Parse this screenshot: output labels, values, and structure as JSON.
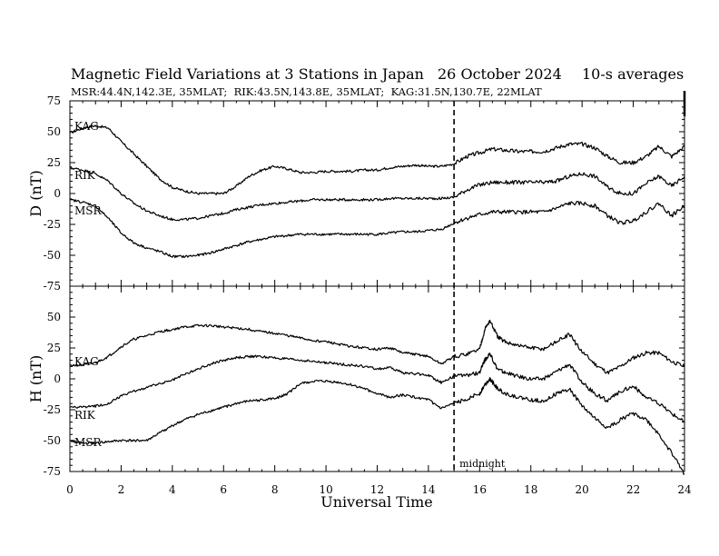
{
  "header": {
    "title": "Magnetic Field Variations at 3 Stations in Japan",
    "date": "26 October 2024",
    "averaging": "10-s averages",
    "stations": "MSR:44.4N,142.3E, 35MLAT;  RIK:43.5N,143.8E, 35MLAT;  KAG:31.5N,130.7E, 22MLAT"
  },
  "annotations": {
    "midnight": "midnight"
  },
  "chart_data": [
    {
      "type": "line",
      "panel": "D",
      "ylabel": "D (nT)",
      "xlabel": "",
      "xlim": [
        0,
        24
      ],
      "ylim": [
        -75,
        75
      ],
      "yticks": [
        75,
        50,
        25,
        0,
        -25,
        -50,
        -75
      ],
      "ytick_labels": [
        "75",
        "50",
        "25",
        "0",
        "-25",
        "-50",
        "-75"
      ],
      "midnight_ut": 15,
      "series": [
        {
          "name": "KAG",
          "x": [
            0,
            0.5,
            1,
            1.5,
            2,
            2.5,
            3,
            3.5,
            4,
            4.5,
            5,
            5.5,
            6,
            6.5,
            7,
            7.5,
            8,
            8.5,
            9,
            9.5,
            10,
            10.5,
            11,
            11.5,
            12,
            12.5,
            13,
            13.5,
            14,
            14.5,
            15,
            15.5,
            16,
            16.5,
            17,
            17.5,
            18,
            18.5,
            19,
            19.5,
            20,
            20.5,
            21,
            21.5,
            22,
            22.5,
            23,
            23.5,
            24
          ],
          "values": [
            49,
            53,
            55,
            53,
            42,
            32,
            22,
            12,
            5,
            2,
            0,
            0,
            0,
            6,
            14,
            19,
            22,
            20,
            17,
            17,
            18,
            18,
            18,
            19,
            19,
            21,
            22,
            23,
            22,
            22,
            24,
            30,
            33,
            36,
            35,
            34,
            34,
            34,
            37,
            40,
            40,
            37,
            30,
            25,
            25,
            30,
            38,
            30,
            38
          ]
        },
        {
          "name": "RIK",
          "x": [
            0,
            0.5,
            1,
            1.5,
            2,
            2.5,
            3,
            3.5,
            4,
            4.5,
            5,
            5.5,
            6,
            6.5,
            7,
            7.5,
            8,
            8.5,
            9,
            9.5,
            10,
            10.5,
            11,
            11.5,
            12,
            12.5,
            13,
            13.5,
            14,
            14.5,
            15,
            15.5,
            16,
            16.5,
            17,
            17.5,
            18,
            18.5,
            19,
            19.5,
            20,
            20.5,
            21,
            21.5,
            22,
            22.5,
            23,
            23.5,
            24
          ],
          "values": [
            21,
            19,
            16,
            10,
            0,
            -8,
            -14,
            -18,
            -21,
            -21,
            -20,
            -18,
            -16,
            -13,
            -11,
            -9,
            -8,
            -7,
            -6,
            -5,
            -5,
            -5,
            -5,
            -5,
            -5,
            -4,
            -4,
            -4,
            -4,
            -4,
            -3,
            3,
            7,
            9,
            9,
            9,
            9,
            9,
            10,
            14,
            16,
            14,
            5,
            0,
            0,
            8,
            14,
            6,
            14
          ]
        },
        {
          "name": "MSR",
          "x": [
            0,
            0.5,
            1,
            1.5,
            2,
            2.5,
            3,
            3.5,
            4,
            4.5,
            5,
            5.5,
            6,
            6.5,
            7,
            7.5,
            8,
            8.5,
            9,
            9.5,
            10,
            10.5,
            11,
            11.5,
            12,
            12.5,
            13,
            13.5,
            14,
            14.5,
            15,
            15.5,
            16,
            16.5,
            17,
            17.5,
            18,
            18.5,
            19,
            19.5,
            20,
            20.5,
            21,
            21.5,
            22,
            22.5,
            23,
            23.5,
            24
          ],
          "values": [
            -5,
            -7,
            -10,
            -20,
            -32,
            -40,
            -44,
            -47,
            -51,
            -51,
            -50,
            -48,
            -45,
            -42,
            -39,
            -37,
            -35,
            -34,
            -33,
            -33,
            -33,
            -33,
            -33,
            -33,
            -33,
            -32,
            -31,
            -31,
            -30,
            -29,
            -24,
            -20,
            -17,
            -15,
            -15,
            -15,
            -15,
            -15,
            -12,
            -8,
            -8,
            -10,
            -18,
            -24,
            -22,
            -15,
            -8,
            -18,
            -10
          ]
        }
      ]
    },
    {
      "type": "line",
      "panel": "H",
      "ylabel": "H (nT)",
      "xlabel": "Universal Time",
      "xlim": [
        0,
        24
      ],
      "ylim": [
        -75,
        75
      ],
      "xticks": [
        0,
        2,
        4,
        6,
        8,
        10,
        12,
        14,
        16,
        18,
        20,
        22,
        24
      ],
      "xtick_labels": [
        "0",
        "2",
        "4",
        "6",
        "8",
        "10",
        "12",
        "14",
        "16",
        "18",
        "20",
        "22",
        "24"
      ],
      "yticks": [
        50,
        25,
        0,
        -25,
        -50,
        -75
      ],
      "ytick_labels": [
        "50",
        "25",
        "0",
        "-25",
        "-50",
        "-75"
      ],
      "midnight_ut": 15,
      "series": [
        {
          "name": "KAG",
          "x": [
            0,
            0.5,
            1,
            1.5,
            2,
            2.5,
            3,
            3.5,
            4,
            4.5,
            5,
            5.5,
            6,
            6.5,
            7,
            7.5,
            8,
            8.5,
            9,
            9.5,
            10,
            10.5,
            11,
            11.5,
            12,
            12.5,
            13,
            13.5,
            14,
            14.5,
            15,
            15.5,
            16,
            16.2,
            16.4,
            16.7,
            17,
            17.5,
            18,
            18.5,
            19,
            19.5,
            20,
            20.5,
            21,
            21.5,
            22,
            22.5,
            23,
            23.5,
            24
          ],
          "values": [
            11,
            11,
            13,
            18,
            26,
            32,
            35,
            38,
            40,
            42,
            43,
            43,
            42,
            41,
            40,
            38,
            37,
            35,
            33,
            31,
            30,
            28,
            26,
            25,
            24,
            25,
            21,
            20,
            18,
            12,
            18,
            20,
            24,
            40,
            47,
            34,
            30,
            27,
            25,
            24,
            30,
            36,
            22,
            12,
            5,
            10,
            17,
            21,
            21,
            14,
            10
          ]
        },
        {
          "name": "RIK",
          "x": [
            0,
            0.5,
            1,
            1.5,
            2,
            2.5,
            3,
            3.5,
            4,
            4.5,
            5,
            5.5,
            6,
            6.5,
            7,
            7.5,
            8,
            8.5,
            9,
            9.5,
            10,
            10.5,
            11,
            11.5,
            12,
            12.5,
            13,
            13.5,
            14,
            14.5,
            15,
            15.5,
            16,
            16.2,
            16.4,
            16.7,
            17,
            17.5,
            18,
            18.5,
            19,
            19.5,
            20,
            20.5,
            21,
            21.5,
            22,
            22.5,
            23,
            23.5,
            24
          ],
          "values": [
            -23,
            -23,
            -22,
            -20,
            -14,
            -10,
            -7,
            -4,
            -1,
            4,
            8,
            12,
            15,
            17,
            18,
            18,
            17,
            16,
            15,
            14,
            13,
            12,
            11,
            10,
            8,
            9,
            5,
            4,
            3,
            -3,
            2,
            3,
            5,
            15,
            20,
            8,
            5,
            2,
            0,
            0,
            6,
            12,
            -3,
            -12,
            -18,
            -10,
            -6,
            -15,
            -20,
            -28,
            -35
          ]
        },
        {
          "name": "MSR",
          "x": [
            0,
            0.5,
            1,
            1.5,
            2,
            2.5,
            3,
            3.5,
            4,
            4.5,
            5,
            5.5,
            6,
            6.5,
            7,
            7.5,
            8,
            8.5,
            9,
            9.5,
            10,
            10.5,
            11,
            11.5,
            12,
            12.5,
            13,
            13.5,
            14,
            14.5,
            15,
            15.5,
            16,
            16.2,
            16.4,
            16.7,
            17,
            17.5,
            18,
            18.5,
            19,
            19.5,
            20,
            20.5,
            21,
            21.5,
            22,
            22.5,
            23,
            23.5,
            24
          ],
          "values": [
            -50,
            -52,
            -52,
            -51,
            -50,
            -50,
            -50,
            -44,
            -38,
            -33,
            -29,
            -26,
            -23,
            -20,
            -18,
            -17,
            -16,
            -12,
            -4,
            -2,
            -2,
            -3,
            -5,
            -8,
            -12,
            -15,
            -13,
            -15,
            -17,
            -24,
            -20,
            -16,
            -12,
            -5,
            0,
            -8,
            -12,
            -15,
            -17,
            -18,
            -12,
            -8,
            -22,
            -32,
            -40,
            -33,
            -28,
            -33,
            -45,
            -60,
            -77
          ]
        }
      ]
    }
  ]
}
